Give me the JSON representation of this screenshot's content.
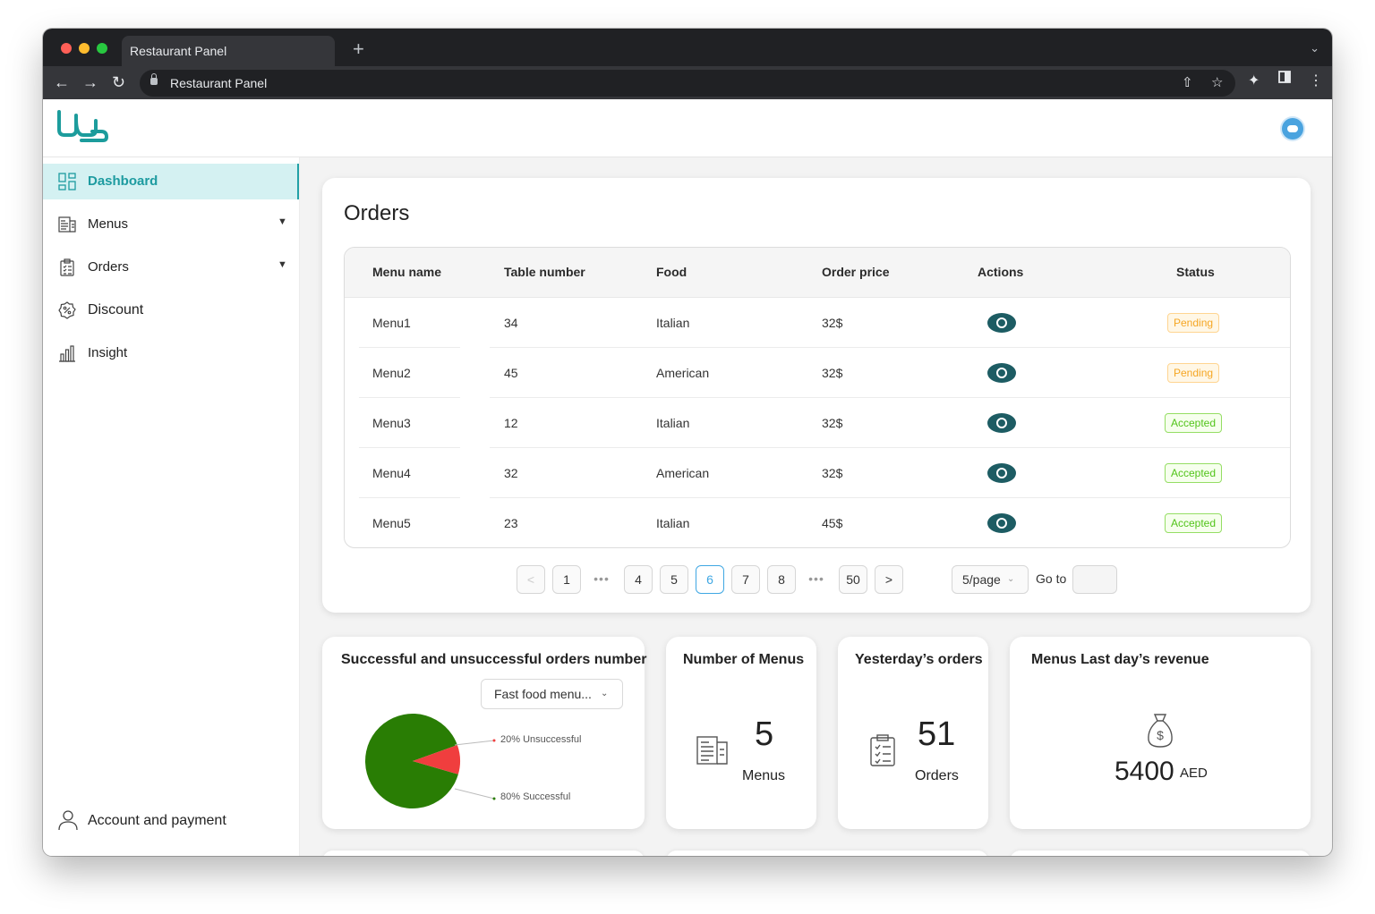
{
  "browser": {
    "tab_title": "Restaurant Panel",
    "new_tab": "+",
    "address": "Restaurant Panel"
  },
  "sidebar": {
    "items": [
      {
        "label": "Dashboard",
        "icon": "dashboard-icon",
        "active": true
      },
      {
        "label": "Menus",
        "icon": "menu-document-icon",
        "expandable": true
      },
      {
        "label": "Orders",
        "icon": "clipboard-list-icon",
        "expandable": true
      },
      {
        "label": "Discount",
        "icon": "discount-badge-icon"
      },
      {
        "label": "Insight",
        "icon": "bar-chart-icon"
      }
    ],
    "account_label": "Account and payment"
  },
  "orders": {
    "title": "Orders",
    "columns": [
      "Menu name",
      "Table number",
      "Food",
      "Order price",
      "Actions",
      "Status"
    ],
    "rows": [
      {
        "menu": "Menu1",
        "table": "34",
        "food": "Italian",
        "price": "32$",
        "status": "Pending"
      },
      {
        "menu": "Menu2",
        "table": "45",
        "food": "American",
        "price": "32$",
        "status": "Pending"
      },
      {
        "menu": "Menu3",
        "table": "12",
        "food": "Italian",
        "price": "32$",
        "status": "Accepted"
      },
      {
        "menu": "Menu4",
        "table": "32",
        "food": "American",
        "price": "32$",
        "status": "Accepted"
      },
      {
        "menu": "Menu5",
        "table": "23",
        "food": "Italian",
        "price": "45$",
        "status": "Accepted"
      }
    ],
    "pagination": {
      "prev": "<",
      "next": ">",
      "pages": [
        "1",
        "4",
        "5",
        "6",
        "7",
        "8",
        "50"
      ],
      "current": "6",
      "ellipsis": "•••",
      "page_size": "5/page",
      "goto_label": "Go to"
    }
  },
  "success_chart": {
    "title": "Successful and unsuccessful orders number",
    "select_value": "Fast food menu...",
    "labels": {
      "unsuccessful": "20% Unsuccessful",
      "successful": "80% Successful"
    }
  },
  "chart_data": {
    "type": "pie",
    "title": "Successful and unsuccessful orders number",
    "slices": [
      {
        "label": "Unsuccessful",
        "value": 20,
        "color": "#f03e3e"
      },
      {
        "label": "Successful",
        "value": 80,
        "color": "#297d04"
      }
    ]
  },
  "stats": {
    "menus": {
      "title": "Number of Menus",
      "value": "5",
      "label": "Menus"
    },
    "yesterday": {
      "title": "Yesterday’s orders",
      "value": "51",
      "label": "Orders"
    },
    "revenue": {
      "title": "Menus Last day’s revenue",
      "value": "5400",
      "currency": "AED"
    }
  },
  "colors": {
    "accent": "#21a1a6",
    "eye": "#1d5c63",
    "pending": "#f5a623",
    "accepted": "#52c41a"
  }
}
